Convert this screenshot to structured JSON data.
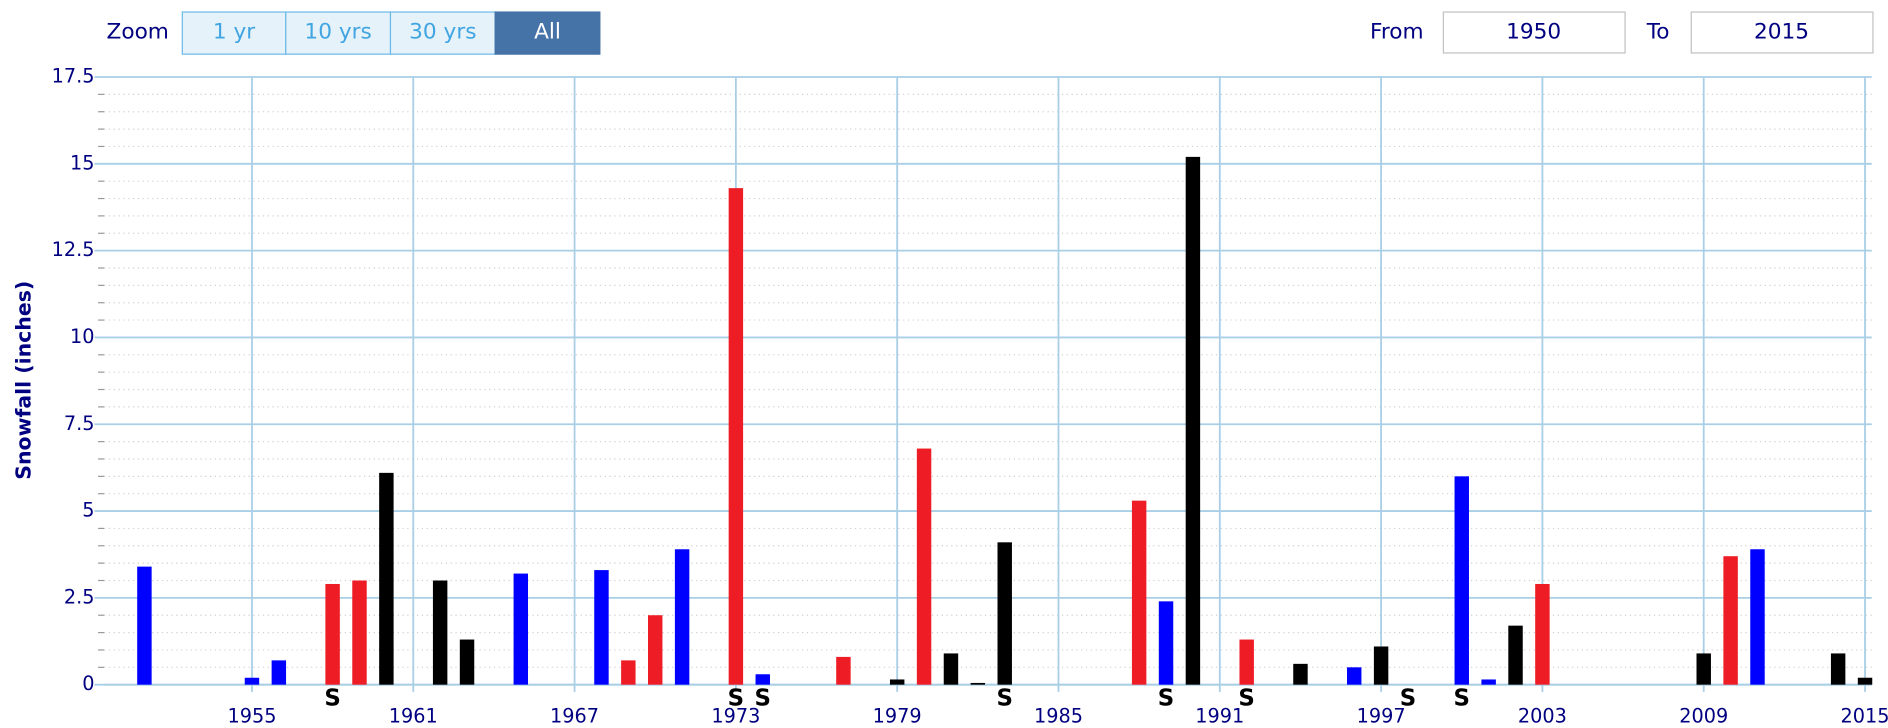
{
  "range_selector": {
    "zoom_label": "Zoom",
    "buttons": [
      "1 yr",
      "10 yrs",
      "30 yrs",
      "All"
    ],
    "selected": 3,
    "from_label": "From",
    "from_value": "1950",
    "to_label": "To",
    "to_value": "2015"
  },
  "chart_data": {
    "type": "bar",
    "ylabel": "Snowfall (inches)",
    "x": [
      1951,
      1955,
      1956,
      1958,
      1959,
      1960,
      1962,
      1963,
      1965,
      1968,
      1969,
      1970,
      1971,
      1973,
      1974,
      1977,
      1979,
      1980,
      1981,
      1982,
      1983,
      1988,
      1989,
      1990,
      1992,
      1994,
      1996,
      1997,
      2000,
      2001,
      2002,
      2003,
      2009,
      2010,
      2011,
      2014,
      2015
    ],
    "values": [
      3.4,
      0.2,
      0.7,
      2.9,
      3.0,
      6.1,
      3.0,
      1.3,
      3.2,
      3.3,
      0.7,
      2.0,
      3.9,
      14.3,
      0.3,
      0.8,
      0.15,
      6.8,
      0.9,
      0.05,
      4.1,
      5.3,
      2.4,
      15.2,
      1.3,
      0.6,
      0.5,
      1.1,
      6.0,
      0.15,
      1.7,
      2.9,
      0.9,
      3.7,
      3.9,
      0.9,
      0.2
    ],
    "colors": [
      "#0000ff",
      "#0000ff",
      "#0000ff",
      "#ee1c25",
      "#ee1c25",
      "#000000",
      "#000000",
      "#000000",
      "#0000ff",
      "#0000ff",
      "#ee1c25",
      "#ee1c25",
      "#0000ff",
      "#ee1c25",
      "#0000ff",
      "#ee1c25",
      "#000000",
      "#ee1c25",
      "#000000",
      "#000000",
      "#000000",
      "#ee1c25",
      "#0000ff",
      "#000000",
      "#ee1c25",
      "#000000",
      "#0000ff",
      "#000000",
      "#0000ff",
      "#0000ff",
      "#000000",
      "#ee1c25",
      "#000000",
      "#ee1c25",
      "#0000ff",
      "#000000",
      "#000000"
    ],
    "annotations": [
      {
        "x": 1958,
        "text": "S"
      },
      {
        "x": 1973,
        "text": "S"
      },
      {
        "x": 1974,
        "text": "S"
      },
      {
        "x": 1983,
        "text": "S"
      },
      {
        "x": 1989,
        "text": "S"
      },
      {
        "x": 1992,
        "text": "S"
      },
      {
        "x": 1998,
        "text": "S"
      },
      {
        "x": 2000,
        "text": "S"
      }
    ],
    "xlim": [
      1949.5,
      2015.25
    ],
    "xticks": [
      1955,
      1961,
      1967,
      1973,
      1979,
      1985,
      1991,
      1997,
      2003,
      2009,
      2015
    ],
    "ylim": [
      0,
      17.5
    ],
    "yticks": [
      0,
      2.5,
      5,
      7.5,
      10,
      12.5,
      15,
      17.5
    ],
    "yminor": [
      0.5,
      1,
      1.5,
      2,
      3,
      3.5,
      4,
      4.5,
      5.5,
      6,
      6.5,
      7,
      8,
      8.5,
      9,
      9.5,
      10.5,
      11,
      11.5,
      12,
      13,
      13.5,
      14,
      14.5,
      15.5,
      16,
      16.5,
      17
    ],
    "grid": true
  }
}
